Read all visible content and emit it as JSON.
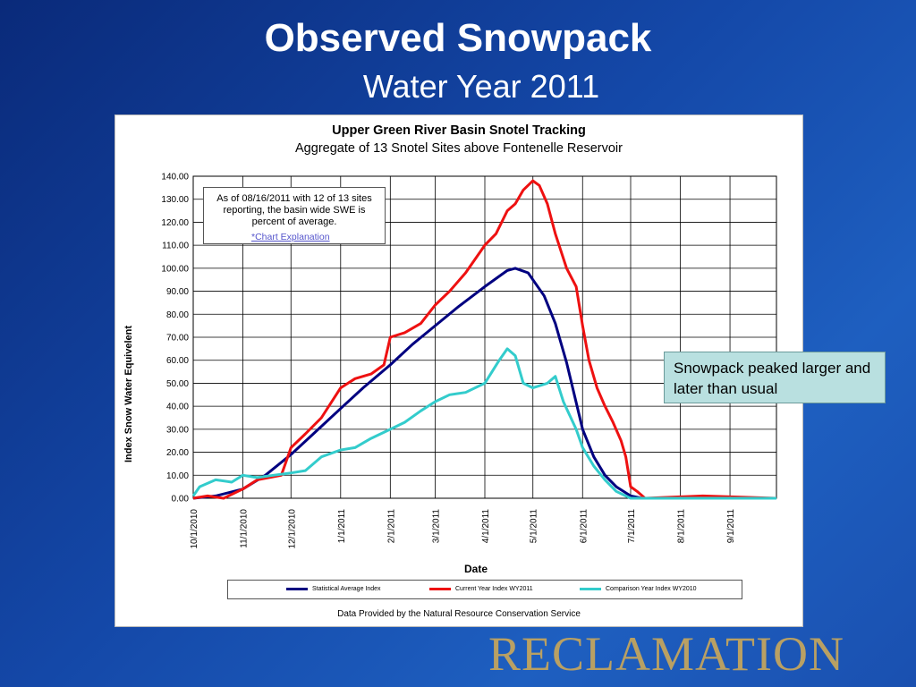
{
  "slide": {
    "title": "Observed Snowpack",
    "subtitle": "Water Year 2011",
    "callout": "Snowpack peaked larger and later than usual",
    "logo": "RECLAMATION"
  },
  "colors": {
    "statistical": "#000080",
    "current": "#ee1111",
    "comparison": "#33cccc"
  },
  "info_box": {
    "text": "As of 08/16/2011 with 12 of 13 sites reporting, the basin wide SWE is    percent of average.",
    "link": "*Chart Explanation"
  },
  "source_note": "Data Provided by the Natural Resource Conservation Service",
  "chart_data": {
    "type": "line",
    "title": "Upper Green River Basin Snotel Tracking",
    "subtitle": "Aggregate of 13 Snotel Sites above Fontenelle Reservoir",
    "xlabel": "Date",
    "ylabel": "Index Snow Water  Equivelent",
    "ylim": [
      0,
      140
    ],
    "y_ticks": [
      "0.00",
      "10.00",
      "20.00",
      "30.00",
      "40.00",
      "50.00",
      "60.00",
      "70.00",
      "80.00",
      "90.00",
      "100.00",
      "110.00",
      "120.00",
      "130.00",
      "140.00"
    ],
    "x_ticks": [
      "10/1/2010",
      "11/1/2010",
      "12/1/2010",
      "1/1/2011",
      "2/1/2011",
      "3/1/2011",
      "4/1/2011",
      "5/1/2011",
      "6/1/2011",
      "7/1/2011",
      "8/1/2011",
      "9/1/2011"
    ],
    "grid": true,
    "legend_position": "bottom",
    "series": [
      {
        "name": "Statistical Average Index",
        "points": [
          [
            "10/1/2010",
            0
          ],
          [
            "10/15/2010",
            1
          ],
          [
            "11/1/2010",
            4
          ],
          [
            "11/15/2010",
            10
          ],
          [
            "12/1/2010",
            19
          ],
          [
            "12/15/2010",
            28
          ],
          [
            "1/1/2011",
            39
          ],
          [
            "1/15/2011",
            48
          ],
          [
            "2/1/2011",
            58
          ],
          [
            "2/15/2011",
            67
          ],
          [
            "3/1/2011",
            75
          ],
          [
            "3/15/2011",
            83
          ],
          [
            "4/1/2011",
            92
          ],
          [
            "4/15/2011",
            99
          ],
          [
            "4/20/2011",
            100
          ],
          [
            "4/28/2011",
            98
          ],
          [
            "5/1/2011",
            95
          ],
          [
            "5/8/2011",
            88
          ],
          [
            "5/15/2011",
            76
          ],
          [
            "5/22/2011",
            59
          ],
          [
            "6/1/2011",
            30
          ],
          [
            "6/8/2011",
            18
          ],
          [
            "6/15/2011",
            10
          ],
          [
            "6/22/2011",
            5
          ],
          [
            "7/1/2011",
            1
          ],
          [
            "7/8/2011",
            0
          ],
          [
            "9/30/2011",
            0
          ]
        ]
      },
      {
        "name": "Current Year  Index  WY2011",
        "points": [
          [
            "10/1/2010",
            0
          ],
          [
            "10/10/2010",
            1
          ],
          [
            "10/20/2010",
            0
          ],
          [
            "11/1/2010",
            4
          ],
          [
            "11/10/2010",
            8
          ],
          [
            "11/25/2010",
            10
          ],
          [
            "12/1/2010",
            22
          ],
          [
            "12/10/2010",
            28
          ],
          [
            "12/20/2010",
            35
          ],
          [
            "1/1/2011",
            48
          ],
          [
            "1/10/2011",
            52
          ],
          [
            "1/20/2011",
            54
          ],
          [
            "1/28/2011",
            58
          ],
          [
            "2/1/2011",
            70
          ],
          [
            "2/10/2011",
            72
          ],
          [
            "2/20/2011",
            76
          ],
          [
            "3/1/2011",
            84
          ],
          [
            "3/10/2011",
            90
          ],
          [
            "3/20/2011",
            98
          ],
          [
            "4/1/2011",
            110
          ],
          [
            "4/8/2011",
            115
          ],
          [
            "4/15/2011",
            125
          ],
          [
            "4/20/2011",
            128
          ],
          [
            "4/25/2011",
            134
          ],
          [
            "5/1/2011",
            138
          ],
          [
            "5/5/2011",
            136
          ],
          [
            "5/10/2011",
            128
          ],
          [
            "5/15/2011",
            115
          ],
          [
            "5/22/2011",
            100
          ],
          [
            "5/28/2011",
            92
          ],
          [
            "6/1/2011",
            75
          ],
          [
            "6/5/2011",
            60
          ],
          [
            "6/10/2011",
            48
          ],
          [
            "6/15/2011",
            40
          ],
          [
            "6/20/2011",
            33
          ],
          [
            "6/25/2011",
            25
          ],
          [
            "6/28/2011",
            18
          ],
          [
            "7/1/2011",
            5
          ],
          [
            "7/5/2011",
            3
          ],
          [
            "7/10/2011",
            0
          ],
          [
            "8/15/2011",
            1
          ],
          [
            "9/30/2011",
            0
          ]
        ]
      },
      {
        "name": "Comparison Year  Index  WY2010",
        "points": [
          [
            "10/1/2010",
            1
          ],
          [
            "10/5/2010",
            5
          ],
          [
            "10/15/2010",
            8
          ],
          [
            "10/25/2010",
            7
          ],
          [
            "11/1/2010",
            10
          ],
          [
            "11/10/2010",
            9
          ],
          [
            "11/20/2010",
            10
          ],
          [
            "12/1/2010",
            11
          ],
          [
            "12/10/2010",
            12
          ],
          [
            "12/20/2010",
            18
          ],
          [
            "1/1/2011",
            21
          ],
          [
            "1/10/2011",
            22
          ],
          [
            "1/20/2011",
            26
          ],
          [
            "2/1/2011",
            30
          ],
          [
            "2/10/2011",
            33
          ],
          [
            "2/20/2011",
            38
          ],
          [
            "3/1/2011",
            42
          ],
          [
            "3/10/2011",
            45
          ],
          [
            "3/20/2011",
            46
          ],
          [
            "4/1/2011",
            50
          ],
          [
            "4/10/2011",
            60
          ],
          [
            "4/15/2011",
            65
          ],
          [
            "4/20/2011",
            62
          ],
          [
            "4/25/2011",
            50
          ],
          [
            "5/1/2011",
            48
          ],
          [
            "5/10/2011",
            50
          ],
          [
            "5/15/2011",
            53
          ],
          [
            "5/20/2011",
            42
          ],
          [
            "5/28/2011",
            30
          ],
          [
            "6/1/2011",
            22
          ],
          [
            "6/8/2011",
            14
          ],
          [
            "6/15/2011",
            8
          ],
          [
            "6/22/2011",
            3
          ],
          [
            "7/1/2011",
            0
          ],
          [
            "9/30/2011",
            0
          ]
        ]
      }
    ]
  }
}
